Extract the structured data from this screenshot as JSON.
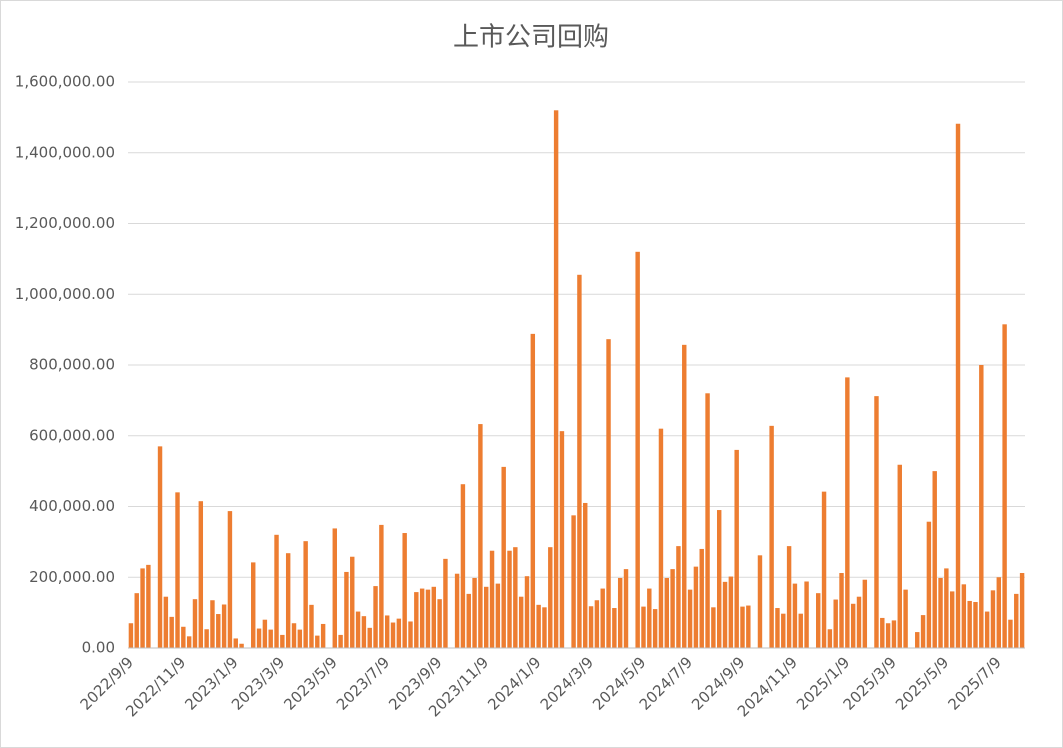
{
  "chart_data": {
    "type": "bar",
    "title": "上市公司回购",
    "categories": [
      "2022/9/9",
      null,
      null,
      null,
      null,
      null,
      null,
      null,
      null,
      "2022/11/9",
      null,
      null,
      null,
      null,
      null,
      null,
      null,
      null,
      "2023/1/9",
      null,
      null,
      null,
      null,
      null,
      null,
      null,
      "2023/3/9",
      null,
      null,
      null,
      null,
      null,
      null,
      null,
      null,
      "2023/5/9",
      null,
      null,
      null,
      null,
      null,
      null,
      null,
      null,
      "2023/7/9",
      null,
      null,
      null,
      null,
      null,
      null,
      null,
      null,
      "2023/9/9",
      null,
      null,
      null,
      null,
      null,
      null,
      null,
      "2023/11/9",
      null,
      null,
      null,
      null,
      null,
      null,
      null,
      null,
      "2024/1/9",
      null,
      null,
      null,
      null,
      null,
      null,
      null,
      null,
      "2024/3/9",
      null,
      null,
      null,
      null,
      null,
      null,
      null,
      null,
      "2024/5/9",
      null,
      null,
      null,
      null,
      null,
      null,
      null,
      "2024/7/9",
      null,
      null,
      null,
      null,
      null,
      null,
      null,
      null,
      "2024/9/9",
      null,
      null,
      null,
      null,
      null,
      null,
      null,
      null,
      "2024/11/9",
      null,
      null,
      null,
      null,
      null,
      null,
      null,
      null,
      "2025/1/9",
      null,
      null,
      null,
      null,
      null,
      null,
      null,
      "2025/3/9",
      null,
      null,
      null,
      null,
      null,
      null,
      null,
      null,
      "2025/5/9",
      null,
      null,
      null,
      null,
      null,
      null,
      null,
      null,
      "2025/7/9",
      null,
      null,
      null,
      null
    ],
    "values": [
      70000,
      155000,
      225000,
      235000,
      null,
      570000,
      145000,
      88000,
      440000,
      60000,
      33000,
      138000,
      415000,
      53000,
      135000,
      96000,
      123000,
      387000,
      27000,
      12000,
      null,
      242000,
      55000,
      80000,
      52000,
      320000,
      37000,
      268000,
      70000,
      52000,
      302000,
      122000,
      35000,
      68000,
      null,
      338000,
      37000,
      215000,
      258000,
      103000,
      90000,
      57000,
      175000,
      348000,
      92000,
      72000,
      83000,
      325000,
      75000,
      158000,
      168000,
      165000,
      173000,
      138000,
      252000,
      null,
      210000,
      463000,
      153000,
      198000,
      633000,
      173000,
      275000,
      182000,
      512000,
      275000,
      285000,
      145000,
      203000,
      888000,
      122000,
      115000,
      285000,
      1520000,
      613000,
      null,
      375000,
      1055000,
      410000,
      118000,
      135000,
      168000,
      873000,
      113000,
      198000,
      223000,
      null,
      1120000,
      117000,
      168000,
      110000,
      620000,
      198000,
      223000,
      288000,
      857000,
      165000,
      230000,
      280000,
      720000,
      115000,
      390000,
      187000,
      202000,
      560000,
      117000,
      120000,
      null,
      262000,
      null,
      628000,
      113000,
      97000,
      288000,
      182000,
      97000,
      188000,
      null,
      155000,
      442000,
      53000,
      137000,
      212000,
      765000,
      125000,
      145000,
      193000,
      null,
      712000,
      85000,
      70000,
      78000,
      518000,
      165000,
      null,
      45000,
      93000,
      357000,
      500000,
      198000,
      225000,
      160000,
      1482000,
      180000,
      133000,
      130000,
      800000,
      103000,
      163000,
      200000,
      915000,
      80000,
      153000,
      212000
    ],
    "color": "#ed7d31",
    "ylim": [
      0,
      1600000
    ],
    "yticks": [
      {
        "value": 0,
        "label": "0.00"
      },
      {
        "value": 200000,
        "label": "200,000.00"
      },
      {
        "value": 400000,
        "label": "400,000.00"
      },
      {
        "value": 600000,
        "label": "600,000.00"
      },
      {
        "value": 800000,
        "label": "800,000.00"
      },
      {
        "value": 1000000,
        "label": "1,000,000.00"
      },
      {
        "value": 1200000,
        "label": "1,200,000.00"
      },
      {
        "value": 1400000,
        "label": "1,400,000.00"
      },
      {
        "value": 1600000,
        "label": "1,600,000.00"
      }
    ],
    "grid": true
  }
}
